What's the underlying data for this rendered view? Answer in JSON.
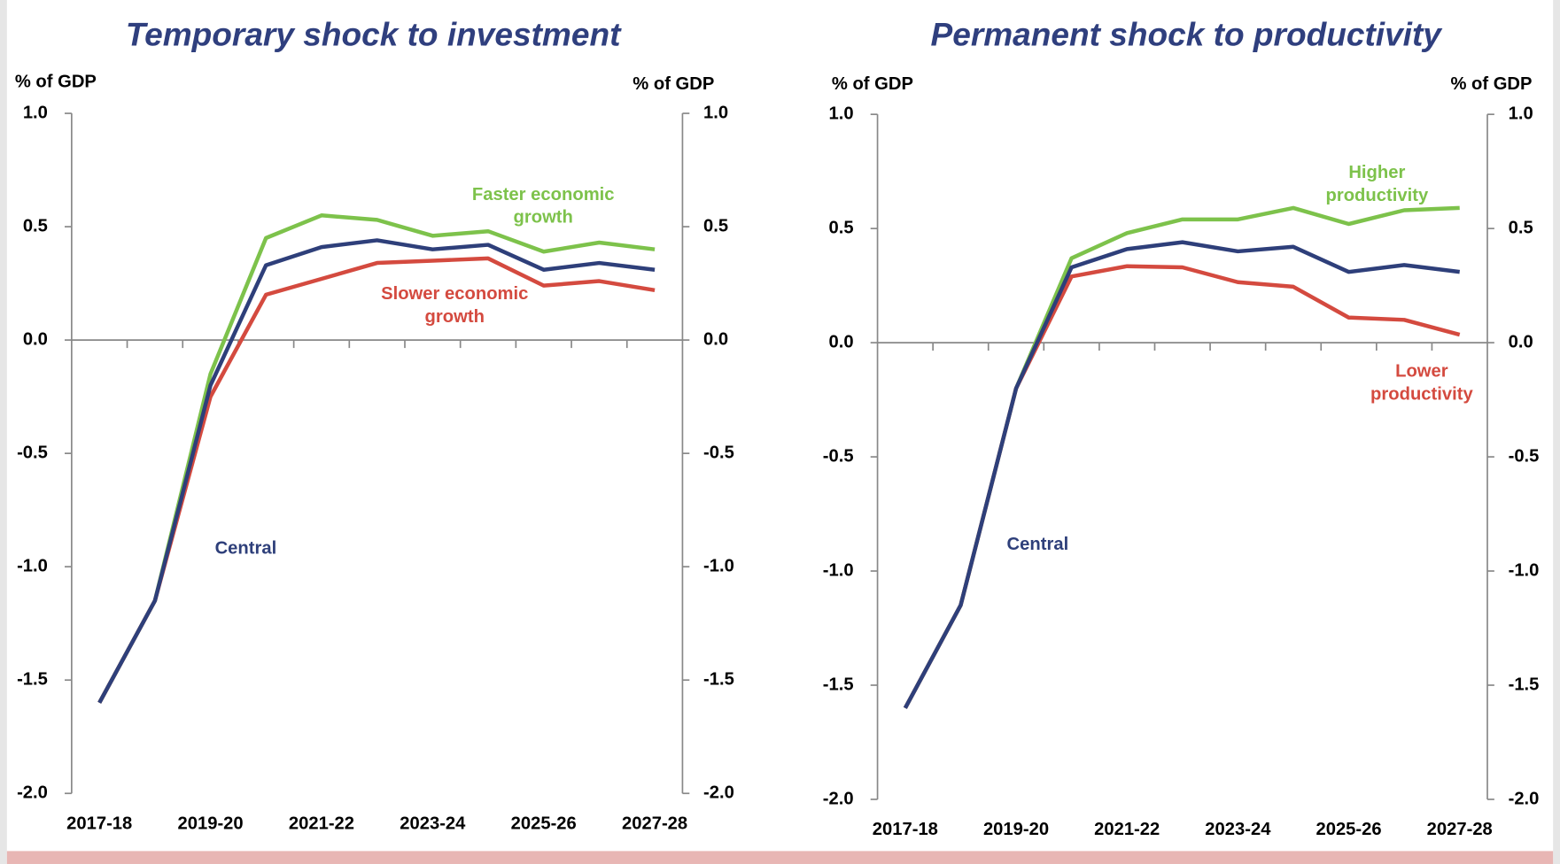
{
  "chart_data": [
    {
      "type": "line",
      "title": "Temporary shock to investment",
      "ylabel": "% of GDP",
      "y2label": "% of GDP",
      "categories": [
        "2017-18",
        null,
        "2019-20",
        null,
        "2021-22",
        null,
        "2023-24",
        null,
        "2025-26",
        null,
        "2027-28"
      ],
      "series": [
        {
          "name": "Faster economic growth",
          "color": "#7dc24b",
          "values": [
            -1.6,
            -1.15,
            -0.15,
            0.45,
            0.55,
            0.53,
            0.46,
            0.48,
            0.39,
            0.43,
            0.4
          ]
        },
        {
          "name": "Slower economic growth",
          "color": "#d44a3f",
          "values": [
            -1.6,
            -1.15,
            -0.25,
            0.2,
            0.27,
            0.34,
            0.35,
            0.36,
            0.24,
            0.26,
            0.22
          ]
        },
        {
          "name": "Central",
          "color": "#2e3f7a",
          "values": [
            -1.6,
            -1.15,
            -0.2,
            0.33,
            0.41,
            0.44,
            0.4,
            0.42,
            0.31,
            0.34,
            0.31
          ]
        }
      ],
      "ylim": [
        -2,
        1
      ],
      "yticks": [
        {
          "value": 1,
          "label": "1.0"
        },
        0.5,
        {
          "value": 0,
          "label": "0.0"
        },
        -0.5,
        {
          "value": -1,
          "label": "-1.0"
        },
        -1.5,
        {
          "value": -2,
          "label": "-2.0"
        }
      ],
      "y2lim": [
        -2,
        1
      ],
      "y2ticks": [
        {
          "value": 1,
          "label": "1.0"
        },
        0.5,
        {
          "value": 0,
          "label": "0.0"
        },
        -0.5,
        {
          "value": -1,
          "label": "-1.0"
        },
        -1.5,
        {
          "value": -2,
          "label": "-2.0"
        }
      ]
    },
    {
      "type": "line",
      "title": "Permanent shock to productivity",
      "ylabel": "% of GDP",
      "y2label": "% of GDP",
      "categories": [
        "2017-18",
        null,
        "2019-20",
        null,
        "2021-22",
        null,
        "2023-24",
        null,
        "2025-26",
        null,
        "2027-28"
      ],
      "series": [
        {
          "name": "Higher productivity",
          "color": "#7dc24b",
          "values": [
            -1.6,
            -1.15,
            -0.2,
            0.37,
            0.48,
            0.54,
            0.54,
            0.59,
            0.52,
            0.58,
            0.59
          ]
        },
        {
          "name": "Lower productivity",
          "color": "#d44a3f",
          "values": [
            -1.6,
            -1.15,
            -0.2,
            0.29,
            0.335,
            0.33,
            0.265,
            0.245,
            0.11,
            0.1,
            0.035
          ]
        },
        {
          "name": "Central",
          "color": "#2e3f7a",
          "values": [
            -1.6,
            -1.15,
            -0.2,
            0.33,
            0.41,
            0.44,
            0.4,
            0.42,
            0.31,
            0.34,
            0.31
          ]
        }
      ],
      "ylim": [
        -2,
        1
      ],
      "yticks": [
        {
          "value": 1,
          "label": "1.0"
        },
        0.5,
        {
          "value": 0,
          "label": "0.0"
        },
        -0.5,
        {
          "value": -1,
          "label": "-1.0"
        },
        -1.5,
        {
          "value": -2,
          "label": "-2.0"
        }
      ],
      "y2lim": [
        -2,
        1
      ],
      "y2ticks": [
        {
          "value": 1,
          "label": "1.0"
        },
        0.5,
        {
          "value": 0,
          "label": "0.0"
        },
        -0.5,
        {
          "value": -1,
          "label": "-1.0"
        },
        -1.5,
        {
          "value": -2,
          "label": "-2.0"
        }
      ]
    }
  ]
}
